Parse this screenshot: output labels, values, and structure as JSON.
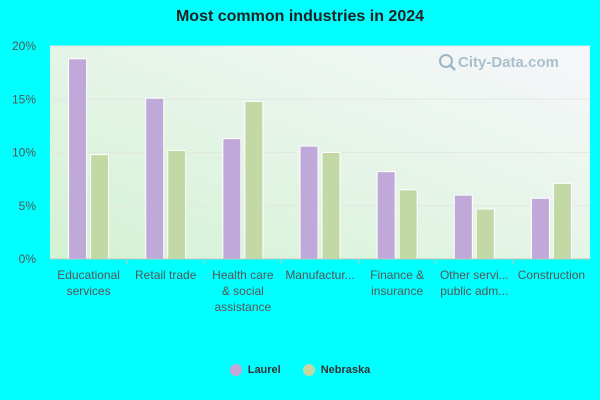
{
  "chart_data": {
    "type": "bar",
    "title": "Most common industries in 2024",
    "categories": [
      [
        "Educational",
        "services"
      ],
      [
        "Retail trade"
      ],
      [
        "Health care",
        "& social",
        "assistance"
      ],
      [
        "Manufactur..."
      ],
      [
        "Finance &",
        "insurance"
      ],
      [
        "Other servi...",
        "public adm..."
      ],
      [
        "Construction"
      ]
    ],
    "series": [
      {
        "name": "Laurel",
        "color": "#C0A8D8",
        "values": [
          18.8,
          15.1,
          11.3,
          10.6,
          8.2,
          6.0,
          5.7
        ]
      },
      {
        "name": "Nebraska",
        "color": "#C3D9A5",
        "values": [
          9.8,
          10.2,
          14.8,
          10.0,
          6.5,
          4.7,
          7.1
        ]
      }
    ],
    "ylim": [
      0,
      20
    ],
    "yticks": [
      {
        "value": 0,
        "label": "0%"
      },
      {
        "value": 5,
        "label": "5%"
      },
      {
        "value": 10,
        "label": "10%"
      },
      {
        "value": 15,
        "label": "15%"
      },
      {
        "value": 20,
        "label": "20%"
      }
    ],
    "grid": true,
    "legend_position": "bottom",
    "watermark": "City-Data.com"
  }
}
